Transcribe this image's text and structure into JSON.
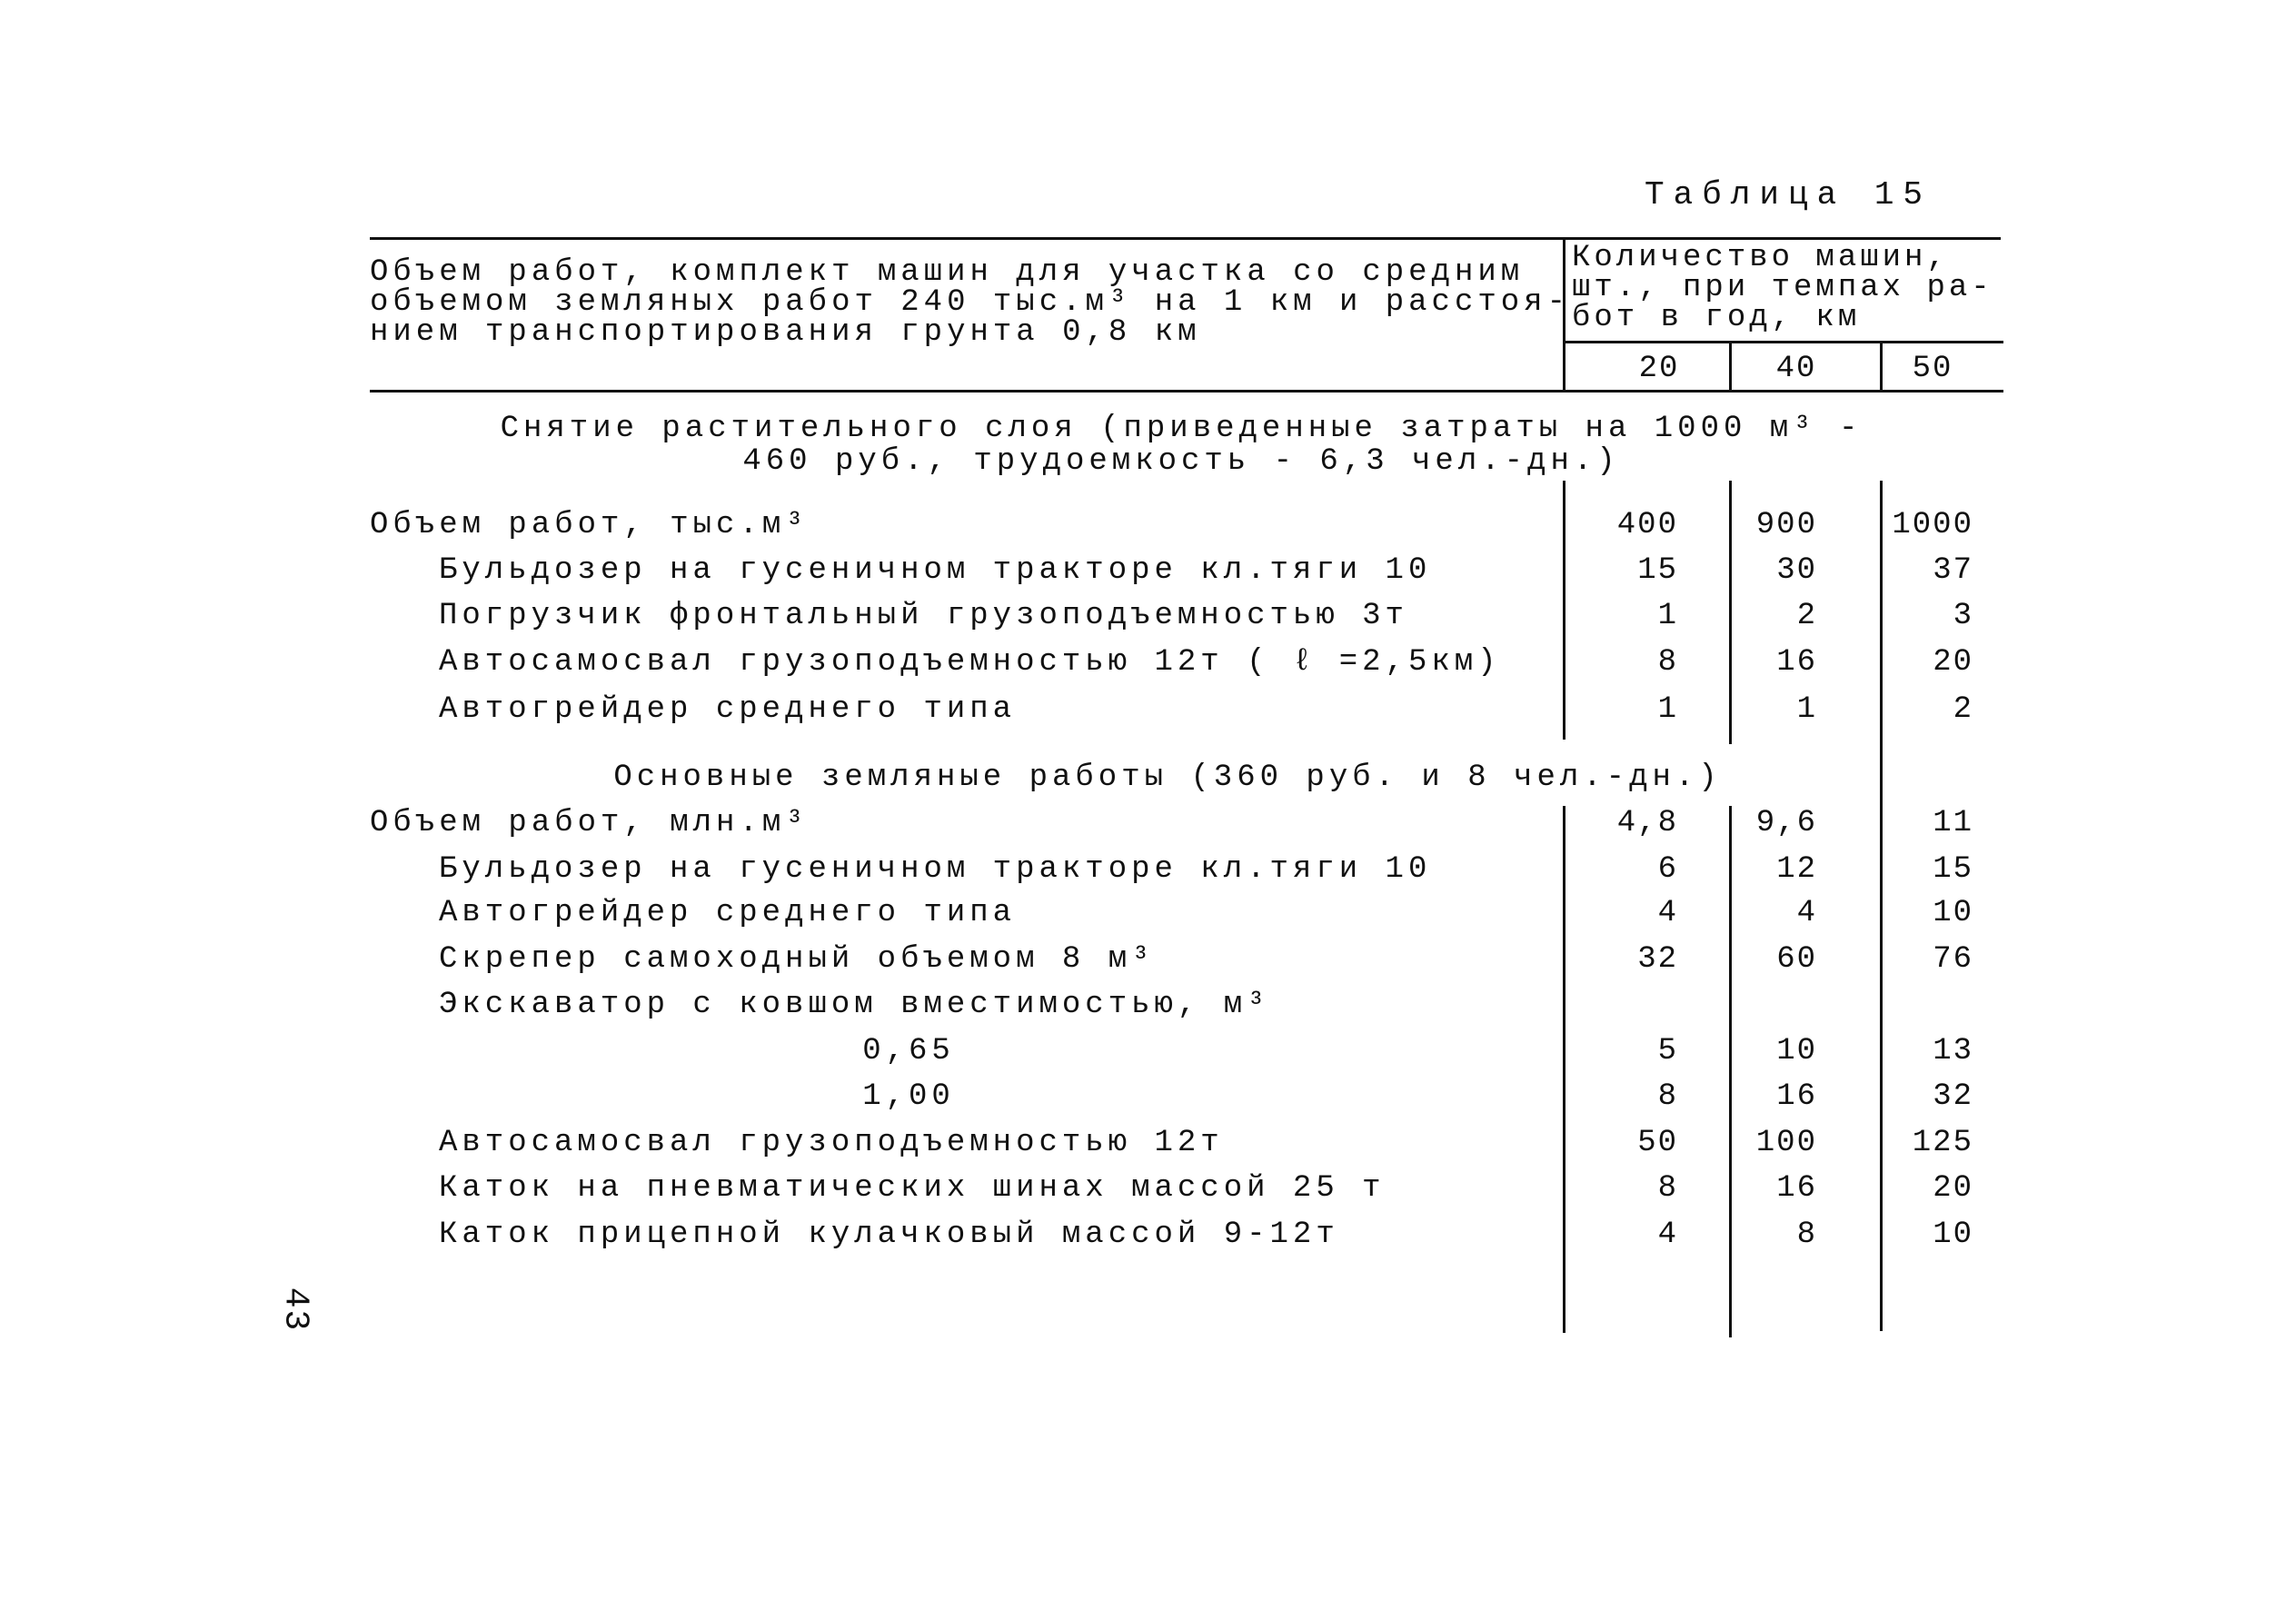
{
  "table_title": "Таблица 15",
  "header": {
    "left_lines": [
      "Объем работ, комплект машин для участка со средним",
      "объемом земляных работ 240 тыс.м³ на 1 км и расстоя-",
      "нием транспортирования грунта 0,8 км"
    ],
    "right_lines": [
      "Количество машин,",
      "шт., при темпах ра-",
      "бот в год, км"
    ],
    "columns": [
      "20",
      "40",
      "50"
    ]
  },
  "sections": [
    {
      "title_lines": [
        "Снятие растительного слоя (приведенные затраты на 1000 м³ -",
        "460 руб., трудоемкость - 6,3 чел.-дн.)"
      ],
      "rows": [
        {
          "label": "Объем работ, тыс.м³",
          "values": [
            "400",
            "900",
            "1000"
          ]
        },
        {
          "label": "Бульдозер на гусеничном тракторе кл.тяги 10",
          "values": [
            "15",
            "30",
            "37"
          ]
        },
        {
          "label": "Погрузчик фронтальный грузоподъемностью 3т",
          "values": [
            "1",
            "2",
            "3"
          ]
        },
        {
          "label": "Автосамосвал грузоподъемностью 12т ( ℓ =2,5км)",
          "values": [
            "8",
            "16",
            "20"
          ]
        },
        {
          "label": "Автогрейдер среднего типа",
          "values": [
            "1",
            "1",
            "2"
          ]
        }
      ]
    },
    {
      "title_lines": [
        "Основные  земляные работы (360 руб. и 8 чел.-дн.)"
      ],
      "rows": [
        {
          "label": "Объем работ, млн.м³",
          "values": [
            "4,8",
            "9,6",
            "11"
          ]
        },
        {
          "label": "Бульдозер на гусеничном тракторе кл.тяги 10",
          "values": [
            "6",
            "12",
            "15"
          ]
        },
        {
          "label": "Автогрейдер среднего типа",
          "values": [
            "4",
            "4",
            "10"
          ]
        },
        {
          "label": "Скрепер самоходный объемом 8 м³",
          "values": [
            "32",
            "60",
            "76"
          ]
        },
        {
          "label": "Экскаватор с ковшом вместимостью, м³",
          "values": [
            "",
            "",
            ""
          ]
        },
        {
          "label": "0,65",
          "values": [
            "5",
            "10",
            "13"
          ]
        },
        {
          "label": "1,00",
          "values": [
            "8",
            "16",
            "32"
          ]
        },
        {
          "label": "Автосамосвал грузоподъемностью 12т",
          "values": [
            "50",
            "100",
            "125"
          ]
        },
        {
          "label": "Каток на пневматических шинах массой 25 т",
          "values": [
            "8",
            "16",
            "20"
          ]
        },
        {
          "label": "Каток прицепной кулачковый массой 9-12т",
          "values": [
            "4",
            "8",
            "10"
          ]
        }
      ]
    }
  ],
  "page_number": "43"
}
